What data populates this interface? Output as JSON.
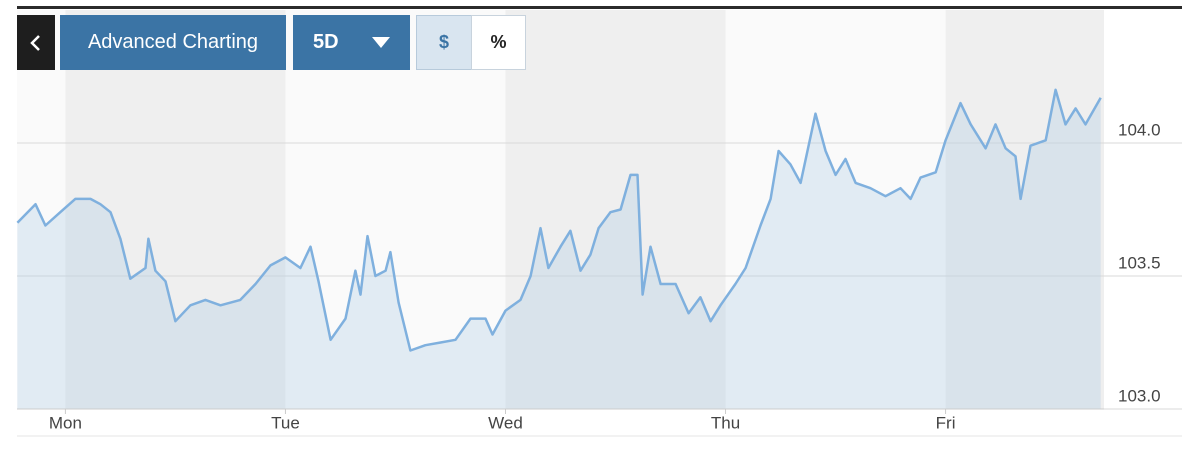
{
  "toolbar": {
    "title": "Advanced Charting",
    "range": "5D",
    "mode_dollar": "$",
    "mode_percent": "%"
  },
  "chart_data": {
    "type": "line",
    "x": [
      -0.218,
      -0.136,
      -0.091,
      -0.023,
      0.045,
      0.114,
      0.159,
      0.205,
      0.25,
      0.295,
      0.364,
      0.377,
      0.409,
      0.455,
      0.5,
      0.568,
      0.636,
      0.705,
      0.795,
      0.864,
      0.932,
      1.0,
      1.068,
      1.114,
      1.15,
      1.205,
      1.273,
      1.318,
      1.341,
      1.373,
      1.409,
      1.455,
      1.477,
      1.514,
      1.568,
      1.636,
      1.705,
      1.773,
      1.841,
      1.909,
      1.941,
      2.0,
      2.068,
      2.114,
      2.159,
      2.195,
      2.25,
      2.295,
      2.341,
      2.386,
      2.423,
      2.477,
      2.523,
      2.568,
      2.6,
      2.623,
      2.659,
      2.705,
      2.773,
      2.832,
      2.886,
      2.932,
      2.977,
      3.045,
      3.091,
      3.159,
      3.205,
      3.241,
      3.295,
      3.341,
      3.409,
      3.455,
      3.5,
      3.545,
      3.591,
      3.659,
      3.727,
      3.795,
      3.841,
      3.886,
      3.955,
      4.0,
      4.068,
      4.114,
      4.182,
      4.227,
      4.273,
      4.318,
      4.341,
      4.386,
      4.455,
      4.5,
      4.545,
      4.591,
      4.636,
      4.705
    ],
    "values": [
      103.7,
      103.77,
      103.69,
      103.74,
      103.79,
      103.79,
      103.77,
      103.74,
      103.64,
      103.49,
      103.53,
      103.64,
      103.52,
      103.48,
      103.33,
      103.39,
      103.41,
      103.39,
      103.41,
      103.47,
      103.54,
      103.57,
      103.53,
      103.61,
      103.48,
      103.26,
      103.34,
      103.52,
      103.43,
      103.65,
      103.5,
      103.52,
      103.59,
      103.4,
      103.22,
      103.24,
      103.25,
      103.26,
      103.34,
      103.34,
      103.28,
      103.37,
      103.41,
      103.5,
      103.68,
      103.53,
      103.61,
      103.67,
      103.52,
      103.58,
      103.68,
      103.74,
      103.75,
      103.88,
      103.88,
      103.43,
      103.61,
      103.47,
      103.47,
      103.36,
      103.42,
      103.33,
      103.39,
      103.47,
      103.53,
      103.69,
      103.79,
      103.97,
      103.92,
      103.85,
      104.11,
      103.97,
      103.88,
      103.94,
      103.85,
      103.83,
      103.8,
      103.83,
      103.79,
      103.87,
      103.89,
      104.01,
      104.15,
      104.07,
      103.98,
      104.07,
      103.98,
      103.95,
      103.79,
      103.99,
      104.01,
      104.2,
      104.07,
      104.13,
      104.07,
      104.17
    ],
    "color": "#7fb0de",
    "xlim": [
      -0.22,
      4.72
    ],
    "xticks": [
      {
        "value": 0,
        "label": "Mon"
      },
      {
        "value": 1,
        "label": "Tue"
      },
      {
        "value": 2,
        "label": "Wed"
      },
      {
        "value": 3,
        "label": "Thu"
      },
      {
        "value": 4,
        "label": "Fri"
      }
    ],
    "ylim": [
      103.0,
      104.5
    ],
    "yticks": [
      {
        "value": 103,
        "label": "103.0"
      },
      103.5,
      {
        "value": 104,
        "label": "104.0"
      }
    ],
    "grid": true
  }
}
